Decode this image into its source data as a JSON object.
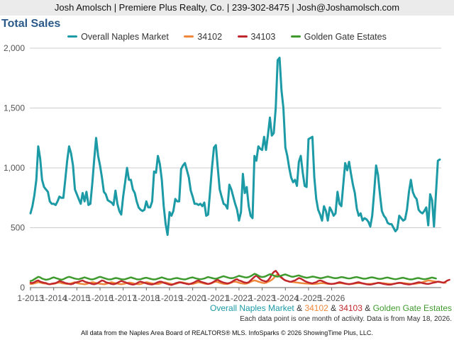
{
  "header": {
    "text": "Josh Amolsch | Premiere Plus Realty, Co. | 239-302-8475 | Josh@Joshamolsch.com"
  },
  "chart_data": {
    "type": "line",
    "title": "Total Sales",
    "xlabel": "",
    "ylabel": "",
    "ylim": [
      0,
      2000
    ],
    "yticks": [
      "0",
      "500",
      "1,000",
      "1,500",
      "2,000"
    ],
    "ytick_values": [
      0,
      500,
      1000,
      1500,
      2000
    ],
    "xticks": [
      "1-2013",
      "1-2014",
      "1-2015",
      "1-2016",
      "1-2017",
      "1-2018",
      "1-2019",
      "1-2020",
      "1-2021",
      "1-2022",
      "1-2023",
      "1-2024",
      "1-2025",
      "1-2026"
    ],
    "grid": true,
    "legend_position": "top",
    "series": [
      {
        "name": "Overall Naples Market",
        "color": "#1c9aa6",
        "values": [
          620,
          680,
          770,
          900,
          1180,
          1080,
          900,
          840,
          820,
          800,
          720,
          700,
          700,
          690,
          720,
          760,
          750,
          750,
          900,
          1060,
          1180,
          1120,
          1020,
          820,
          780,
          740,
          700,
          790,
          720,
          800,
          690,
          700,
          870,
          1070,
          1250,
          1100,
          1020,
          920,
          800,
          780,
          730,
          720,
          710,
          690,
          810,
          700,
          640,
          610,
          760,
          880,
          1000,
          900,
          900,
          820,
          790,
          720,
          670,
          650,
          640,
          650,
          720,
          670,
          670,
          720,
          970,
          960,
          1100,
          1030,
          900,
          680,
          530,
          440,
          630,
          600,
          640,
          740,
          720,
          720,
          990,
          1020,
          1040,
          980,
          920,
          810,
          760,
          700,
          700,
          690,
          700,
          680,
          710,
          600,
          610,
          800,
          1000,
          1170,
          1190,
          1000,
          820,
          760,
          700,
          690,
          660,
          860,
          820,
          760,
          700,
          650,
          560,
          630,
          950,
          790,
          840,
          680,
          600,
          580,
          1100,
          1060,
          1180,
          1160,
          1150,
          1260,
          1150,
          1280,
          1420,
          1270,
          1290,
          1500,
          1900,
          1920,
          1650,
          1500,
          1170,
          1100,
          1000,
          920,
          880,
          900,
          850,
          1050,
          1100,
          960,
          850,
          840,
          1240,
          1250,
          1260,
          920,
          740,
          650,
          610,
          560,
          680,
          640,
          560,
          670,
          640,
          600,
          620,
          800,
          700,
          680,
          860,
          1040,
          980,
          1050,
          950,
          860,
          790,
          660,
          600,
          620,
          560,
          580,
          570,
          550,
          510,
          600,
          800,
          1020,
          940,
          780,
          640,
          600,
          580,
          540,
          530,
          530,
          500,
          470,
          490,
          600,
          580,
          560,
          570,
          650,
          800,
          900,
          800,
          760,
          740,
          650,
          630,
          620,
          640,
          670,
          520,
          780,
          730,
          510,
          790,
          1060,
          1070
        ],
        "legend_label": "Overall Naples Market"
      },
      {
        "name": "34102",
        "color": "#f0883c",
        "values": [
          30,
          32,
          35,
          40,
          45,
          42,
          38,
          35,
          33,
          30,
          28,
          30,
          32,
          35,
          40,
          42,
          38,
          35,
          33,
          30,
          32,
          35,
          40,
          45,
          38,
          35,
          32,
          30,
          28,
          30,
          35,
          40,
          45,
          42,
          38,
          35,
          32,
          30,
          28,
          30,
          35,
          40,
          45,
          40,
          36,
          33,
          30,
          28,
          30,
          34,
          38,
          42,
          40,
          36,
          32,
          30,
          28,
          30,
          35,
          40,
          45,
          42,
          38,
          35,
          32,
          30,
          30,
          34,
          40,
          44,
          42,
          38,
          34,
          30,
          28,
          30,
          35,
          40,
          45,
          42,
          38,
          35,
          32,
          30,
          30,
          35,
          40,
          45,
          42,
          38,
          34,
          30,
          30,
          33,
          38,
          45,
          50,
          46,
          40,
          36,
          32,
          30,
          30,
          35,
          42,
          48,
          50,
          46,
          40,
          36,
          34,
          32,
          34,
          40,
          48,
          55,
          60,
          56,
          50,
          45,
          40,
          38,
          40,
          48,
          55,
          65,
          80,
          100,
          110,
          95,
          80,
          70,
          60,
          55,
          50,
          48,
          46,
          44,
          42,
          40,
          38,
          36,
          35,
          34,
          33,
          32,
          30,
          30,
          32,
          34,
          36,
          38,
          36,
          34,
          32,
          30,
          30,
          32,
          34,
          36,
          38,
          36,
          34,
          32,
          30,
          30,
          30,
          32,
          34,
          36,
          38,
          36,
          34,
          32,
          30,
          30,
          30,
          32,
          34,
          36,
          38,
          40,
          38,
          36,
          34,
          32,
          30,
          30,
          32,
          34,
          36,
          38,
          40,
          38,
          36,
          34,
          32,
          30,
          30,
          32,
          34,
          36,
          40,
          45,
          50,
          55,
          60,
          58,
          55,
          52,
          50,
          48,
          46,
          44,
          42,
          40
        ],
        "legend_label": "34102"
      },
      {
        "name": "34103",
        "color": "#c0272d",
        "values": [
          40,
          38,
          45,
          55,
          60,
          50,
          45,
          40,
          38,
          30,
          28,
          32,
          35,
          38,
          45,
          55,
          50,
          45,
          38,
          35,
          30,
          28,
          32,
          40,
          45,
          48,
          55,
          60,
          50,
          45,
          40,
          35,
          30,
          28,
          32,
          40,
          50,
          60,
          55,
          45,
          40,
          35,
          30,
          28,
          32,
          40,
          48,
          55,
          50,
          45,
          38,
          32,
          28,
          25,
          28,
          35,
          45,
          50,
          45,
          40,
          35,
          30,
          28,
          26,
          30,
          38,
          45,
          50,
          48,
          40,
          35,
          30,
          25,
          22,
          28,
          35,
          40,
          45,
          42,
          38,
          35,
          30,
          28,
          32,
          38,
          45,
          55,
          60,
          50,
          45,
          40,
          35,
          30,
          34,
          40,
          50,
          60,
          65,
          55,
          48,
          42,
          38,
          35,
          38,
          45,
          55,
          65,
          70,
          60,
          55,
          48,
          42,
          40,
          45,
          60,
          75,
          90,
          100,
          85,
          70,
          60,
          55,
          50,
          60,
          80,
          110,
          130,
          140,
          120,
          95,
          85,
          70,
          60,
          55,
          50,
          48,
          55,
          60,
          70,
          80,
          75,
          65,
          55,
          48,
          42,
          38,
          35,
          40,
          45,
          55,
          60,
          55,
          48,
          40,
          35,
          32,
          30,
          32,
          35,
          40,
          45,
          42,
          38,
          34,
          30,
          28,
          30,
          34,
          38,
          42,
          45,
          40,
          36,
          32,
          28,
          26,
          25,
          28,
          32,
          36,
          40,
          38,
          34,
          30,
          28,
          25,
          24,
          26,
          30,
          34,
          38,
          40,
          38,
          34,
          30,
          28,
          26,
          28,
          32,
          36,
          40,
          45,
          42,
          38,
          35,
          32,
          30,
          34,
          38,
          42,
          45,
          50,
          48,
          44,
          40,
          50,
          60,
          65
        ],
        "legend_label": "34103"
      },
      {
        "name": "Golden Gate Estates",
        "color": "#3f9a2e",
        "values": [
          55,
          60,
          70,
          80,
          90,
          85,
          75,
          70,
          65,
          68,
          72,
          80,
          85,
          80,
          75,
          70,
          65,
          70,
          78,
          85,
          90,
          85,
          80,
          75,
          72,
          70,
          75,
          80,
          85,
          80,
          75,
          70,
          68,
          72,
          78,
          85,
          90,
          85,
          80,
          75,
          70,
          68,
          70,
          75,
          80,
          78,
          74,
          70,
          68,
          70,
          75,
          80,
          85,
          80,
          75,
          70,
          68,
          70,
          75,
          80,
          82,
          78,
          74,
          70,
          68,
          70,
          75,
          80,
          85,
          80,
          75,
          70,
          68,
          70,
          75,
          78,
          80,
          76,
          72,
          70,
          68,
          72,
          78,
          82,
          85,
          80,
          76,
          72,
          70,
          72,
          76,
          82,
          88,
          84,
          80,
          76,
          74,
          78,
          84,
          90,
          95,
          90,
          85,
          80,
          78,
          80,
          86,
          92,
          98,
          94,
          90,
          86,
          84,
          88,
          95,
          105,
          115,
          110,
          100,
          92,
          88,
          90,
          96,
          104,
          112,
          108,
          100,
          94,
          92,
          96,
          100,
          106,
          110,
          104,
          98,
          92,
          90,
          94,
          98,
          102,
          96,
          90,
          86,
          82,
          84,
          88,
          92,
          90,
          86,
          82,
          78,
          80,
          84,
          88,
          92,
          88,
          84,
          80,
          78,
          80,
          84,
          88,
          86,
          82,
          78,
          76,
          78,
          82,
          86,
          88,
          84,
          80,
          76,
          74,
          76,
          80,
          84,
          86,
          82,
          78,
          74,
          72,
          74,
          78,
          82,
          84,
          80,
          76,
          72,
          70,
          72,
          76,
          80,
          82,
          78,
          74,
          70,
          68,
          70,
          74,
          78,
          80,
          76,
          72,
          70,
          72,
          76,
          80,
          84,
          80,
          76
        ],
        "legend_label": "Golden Gate Estates"
      }
    ]
  },
  "footer": {
    "series_names": [
      "Overall Naples Market",
      "34102",
      "34103",
      "Golden Gate Estates"
    ],
    "amp": "&",
    "note": "Each data point is one month of activity. Data is from May 18, 2026.",
    "source": "All data from the Naples Area Board of REALTORS® MLS. InfoSparks © 2026 ShowingTime Plus, LLC."
  },
  "colors": {
    "title": "#2a5a8a",
    "grid": "#cccccc",
    "axis": "#666666"
  }
}
